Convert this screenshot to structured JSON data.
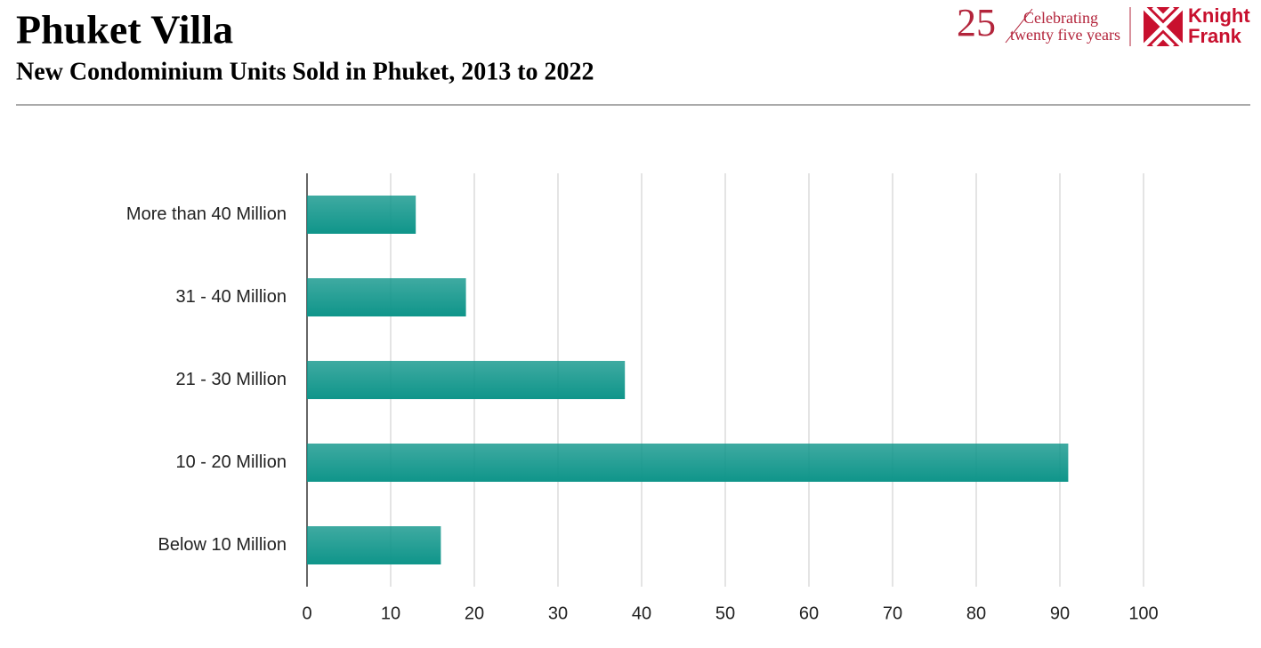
{
  "chart_data": {
    "type": "hbar",
    "title": "Phuket Villa",
    "subtitle": "New Condominium Units Sold in Phuket, 2013 to 2022",
    "categories": [
      "More than 40 Million",
      "31 - 40 Million",
      "21 - 30 Million",
      "10 - 20 Million",
      "Below 10 Million"
    ],
    "values": [
      13,
      19,
      38,
      91,
      16
    ],
    "color": "#0f958a",
    "xlim": [
      0,
      100
    ],
    "xticks": [
      0,
      10,
      20,
      30,
      40,
      50,
      60,
      70,
      80,
      90,
      100
    ],
    "grid": true
  },
  "logo": {
    "anniversary": "25",
    "line1": "Celebrating",
    "line2": "twenty five years",
    "brand1": "Knight",
    "brand2": "Frank"
  }
}
